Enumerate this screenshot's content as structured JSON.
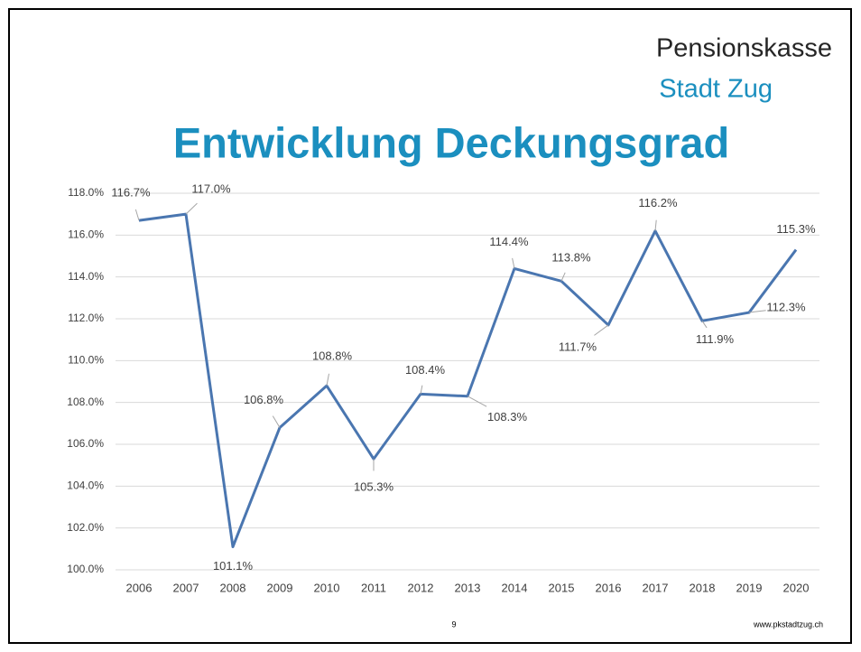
{
  "slide": {
    "brand_line1": "Pensionskasse",
    "brand_line2": "Stadt Zug",
    "page_number": "9",
    "footer_url": "www.pkstadtzug.ch"
  },
  "chart_data": {
    "type": "line",
    "title": "Entwicklung Deckungsgrad",
    "categories": [
      "2006",
      "2007",
      "2008",
      "2009",
      "2010",
      "2011",
      "2012",
      "2013",
      "2014",
      "2015",
      "2016",
      "2017",
      "2018",
      "2019",
      "2020"
    ],
    "series": [
      {
        "name": "Deckungsgrad",
        "color": "#4a76b0",
        "values": [
          116.7,
          117.0,
          101.1,
          106.8,
          108.8,
          105.3,
          108.4,
          108.3,
          114.4,
          113.8,
          111.7,
          116.2,
          111.9,
          112.3,
          115.3
        ],
        "value_labels": [
          "116.7%",
          "117.0%",
          "101.1%",
          "106.8%",
          "108.8%",
          "105.3%",
          "108.4%",
          "108.3%",
          "114.4%",
          "113.8%",
          "111.7%",
          "116.2%",
          "111.9%",
          "112.3%",
          "115.3%"
        ]
      }
    ],
    "ylim": [
      100,
      118
    ],
    "yticks": [
      {
        "value": 100,
        "label": "100.0%"
      },
      {
        "value": 102,
        "label": "102.0%"
      },
      {
        "value": 104,
        "label": "104.0%"
      },
      {
        "value": 106,
        "label": "106.0%"
      },
      {
        "value": 108,
        "label": "108.0%"
      },
      {
        "value": 110,
        "label": "110.0%"
      },
      {
        "value": 112,
        "label": "112.0%"
      },
      {
        "value": 114,
        "label": "114.0%"
      },
      {
        "value": 116,
        "label": "116.0%"
      },
      {
        "value": 118,
        "label": "118.0%"
      }
    ],
    "grid": true
  }
}
